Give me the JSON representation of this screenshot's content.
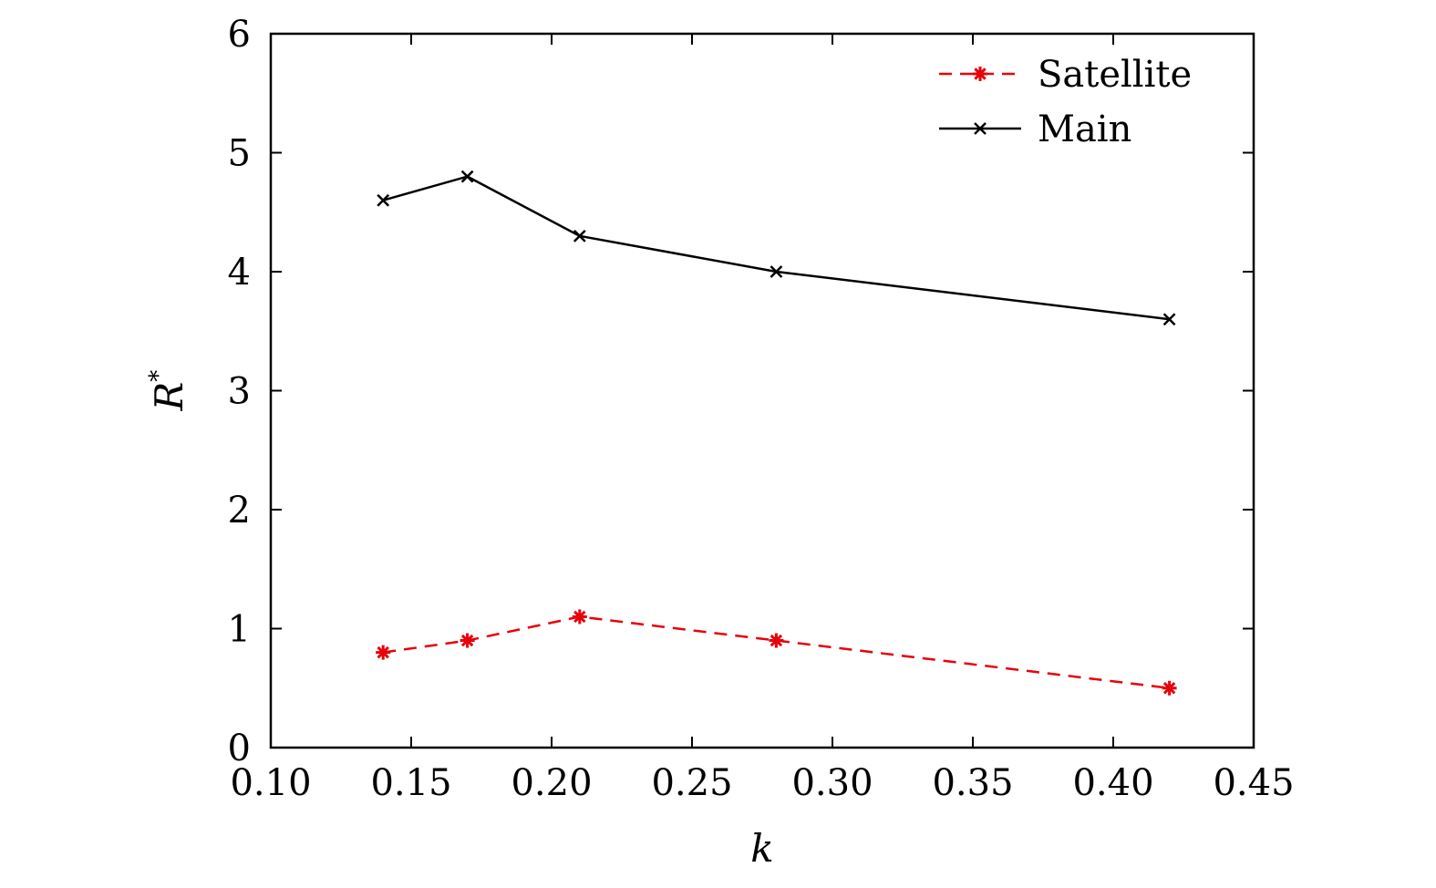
{
  "chart_data": {
    "type": "line",
    "xlabel": "k",
    "ylabel": "R",
    "ylabel_superscript": "*",
    "xlim": [
      0.1,
      0.45
    ],
    "ylim": [
      0,
      6
    ],
    "xticks": [
      "0.10",
      "0.15",
      "0.20",
      "0.25",
      "0.30",
      "0.35",
      "0.40",
      "0.45"
    ],
    "yticks": [
      "0",
      "1",
      "2",
      "3",
      "4",
      "5",
      "6"
    ],
    "grid": false,
    "legend_position": "top-right",
    "series": [
      {
        "name": "Satellite",
        "color": "#e8000b",
        "line_style": "dashed",
        "marker": "asterisk",
        "x": [
          0.14,
          0.17,
          0.21,
          0.28,
          0.42
        ],
        "y": [
          0.8,
          0.9,
          1.1,
          0.9,
          0.5
        ]
      },
      {
        "name": "Main",
        "color": "#000000",
        "line_style": "solid",
        "marker": "x",
        "x": [
          0.14,
          0.17,
          0.21,
          0.28,
          0.42
        ],
        "y": [
          4.6,
          4.8,
          4.3,
          4.0,
          3.6
        ]
      }
    ]
  }
}
